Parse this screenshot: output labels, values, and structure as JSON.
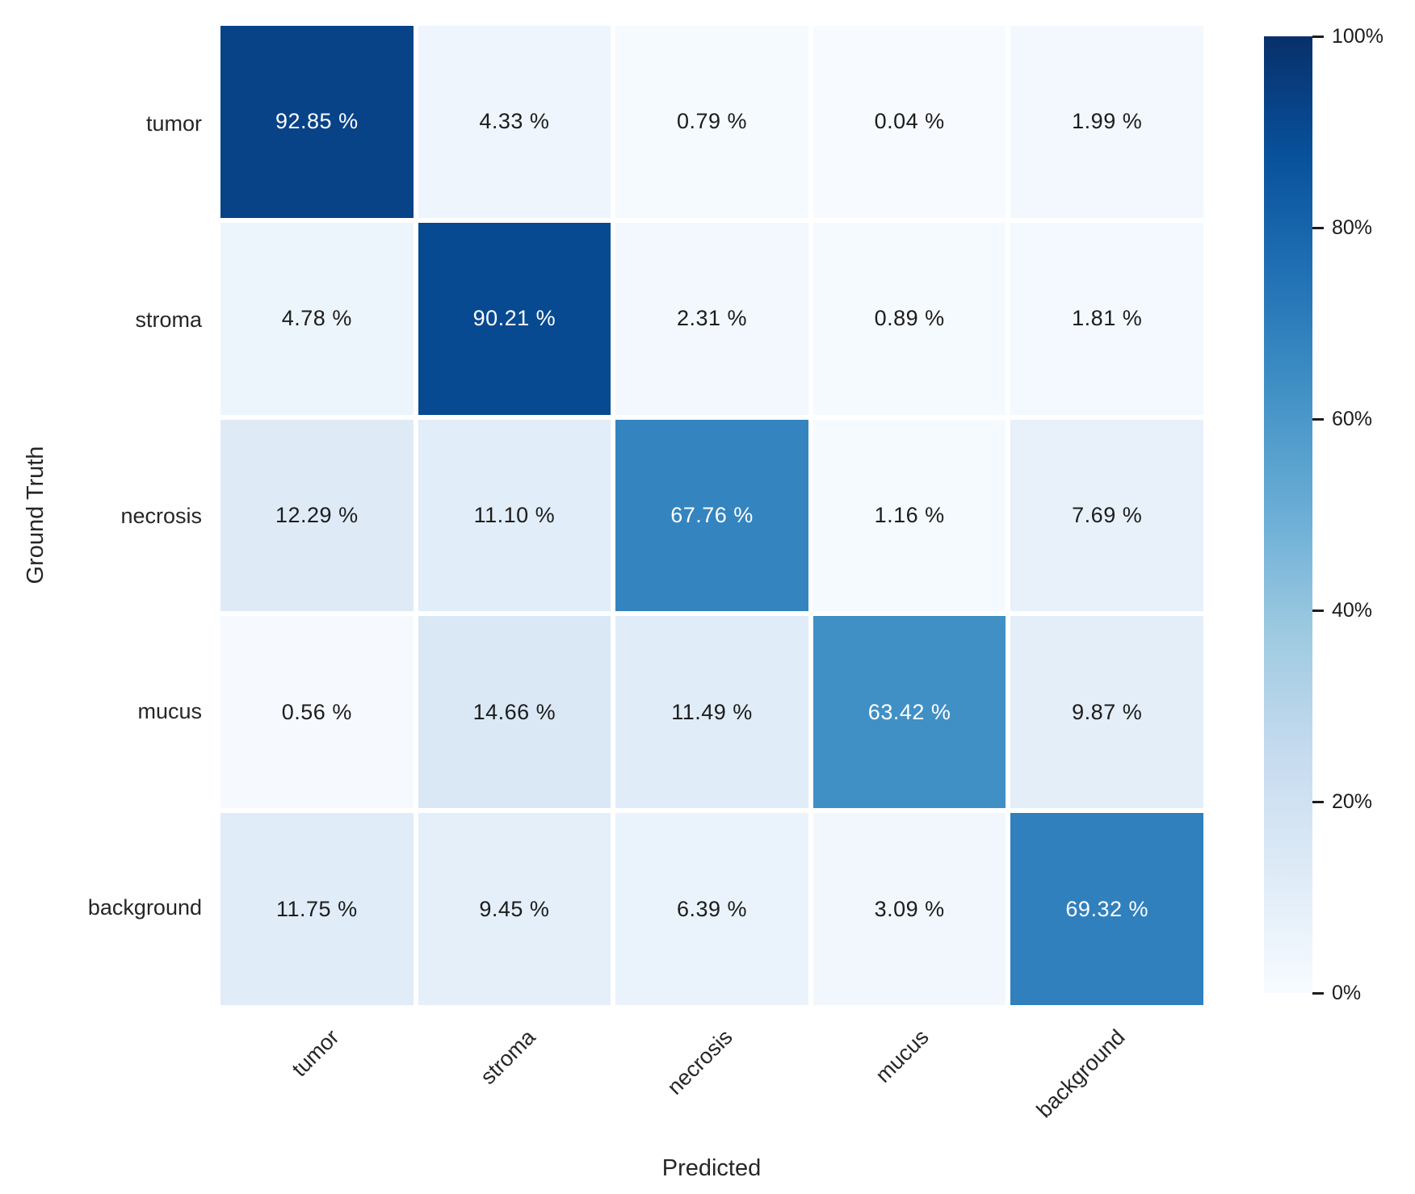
{
  "chart_data": {
    "type": "heatmap",
    "title": "",
    "xlabel": "Predicted",
    "ylabel": "Ground Truth",
    "x_categories": [
      "tumor",
      "stroma",
      "necrosis",
      "mucus",
      "background"
    ],
    "y_categories": [
      "tumor",
      "stroma",
      "necrosis",
      "mucus",
      "background"
    ],
    "values": [
      [
        92.85,
        4.33,
        0.79,
        0.04,
        1.99
      ],
      [
        4.78,
        90.21,
        2.31,
        0.89,
        1.81
      ],
      [
        12.29,
        11.1,
        67.76,
        1.16,
        7.69
      ],
      [
        0.56,
        14.66,
        11.49,
        63.42,
        9.87
      ],
      [
        11.75,
        9.45,
        6.39,
        3.09,
        69.32
      ]
    ],
    "cell_labels": [
      [
        "92.85 %",
        "4.33 %",
        "0.79 %",
        "0.04 %",
        "1.99 %"
      ],
      [
        "4.78 %",
        "90.21 %",
        "2.31 %",
        "0.89 %",
        "1.81 %"
      ],
      [
        "12.29 %",
        "11.10 %",
        "67.76 %",
        "1.16 %",
        "7.69 %"
      ],
      [
        "0.56 %",
        "14.66 %",
        "11.49 %",
        "63.42 %",
        "9.87 %"
      ],
      [
        "11.75 %",
        "9.45 %",
        "6.39 %",
        "3.09 %",
        "69.32 %"
      ]
    ],
    "value_range": [
      0,
      100
    ],
    "grid": "white cell separators",
    "legend_position": "colorbar-right",
    "colormap": "Blues",
    "colormap_stops": [
      "#f7fbff",
      "#deebf7",
      "#c6dbef",
      "#9ecae1",
      "#6baed6",
      "#4292c6",
      "#2171b5",
      "#08519c",
      "#08306b"
    ],
    "colorbar": {
      "tick_labels": [
        "100%",
        "80%",
        "60%",
        "40%",
        "20%",
        "0%"
      ],
      "tick_values": [
        100,
        80,
        60,
        40,
        20,
        0
      ]
    },
    "cell_text_colors": {
      "dark_cells": "#ffffff",
      "light_cells": "#1c1c1c"
    }
  }
}
